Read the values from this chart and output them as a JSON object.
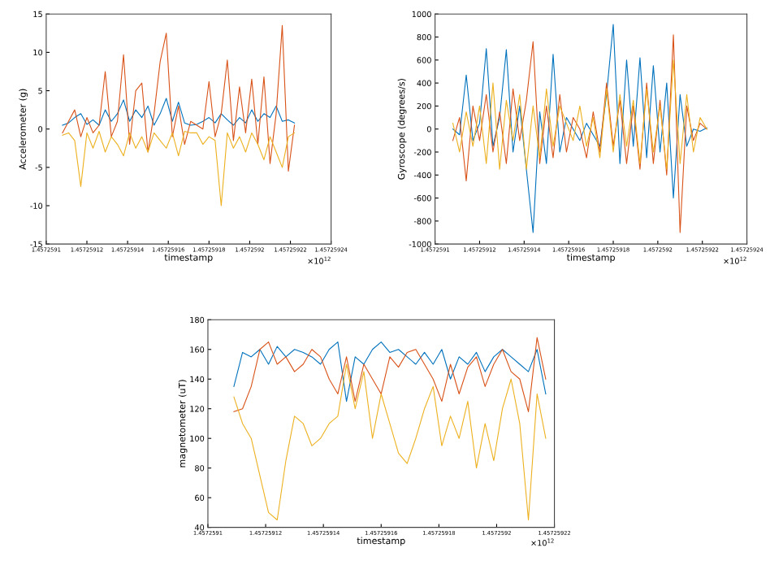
{
  "chart_data": [
    {
      "type": "line",
      "xlabel": "timestamp",
      "ylabel": "Accelerometer (g)",
      "annotations": [
        "×10$^{12}$"
      ],
      "x": [
        1.457259108,
        1.457259111,
        1.457259114,
        1.457259117,
        1.45725912,
        1.457259123,
        1.457259126,
        1.457259129,
        1.457259132,
        1.457259135,
        1.457259138,
        1.457259141,
        1.457259144,
        1.457259147,
        1.45725915,
        1.457259153,
        1.457259156,
        1.457259159,
        1.457259162,
        1.457259165,
        1.457259168,
        1.457259171,
        1.457259174,
        1.457259177,
        1.45725918,
        1.457259183,
        1.457259186,
        1.457259189,
        1.457259192,
        1.457259195,
        1.457259198,
        1.457259201,
        1.457259204,
        1.457259207,
        1.45725921,
        1.457259213,
        1.457259216,
        1.457259219,
        1.457259222
      ],
      "series": [
        {
          "color": "#0072bd",
          "values": [
            0.5,
            0.8,
            1.5,
            2.0,
            0.6,
            1.2,
            0.5,
            2.5,
            1.0,
            2.0,
            3.8,
            1.0,
            2.5,
            1.5,
            3.0,
            0.5,
            2.0,
            4.0,
            1.0,
            3.5,
            0.8,
            0.5,
            0.6,
            1.0,
            1.5,
            0.8,
            2.0,
            1.2,
            0.5,
            1.5,
            0.8,
            2.5,
            1.0,
            2.0,
            1.5,
            3.0,
            1.0,
            1.2,
            0.8
          ]
        },
        {
          "color": "#d95319",
          "values": [
            -0.5,
            1.0,
            2.5,
            -1.0,
            1.5,
            -0.5,
            0.5,
            7.5,
            -1.0,
            1.0,
            9.7,
            -2.0,
            5.0,
            6.0,
            -3.0,
            2.0,
            8.8,
            12.5,
            -1.0,
            3.0,
            -2.0,
            1.0,
            0.5,
            0.0,
            6.2,
            -1.0,
            2.0,
            9.0,
            -1.5,
            5.5,
            -0.5,
            6.5,
            -2.0,
            6.8,
            -4.5,
            2.0,
            13.5,
            -5.5,
            0.5
          ]
        },
        {
          "color": "#edb120",
          "values": [
            -0.8,
            -0.5,
            -1.5,
            -7.5,
            -0.5,
            -2.5,
            -0.3,
            -3.0,
            -1.0,
            -2.0,
            -3.5,
            -0.5,
            -2.5,
            -1.0,
            -3.0,
            -0.5,
            -1.5,
            -2.5,
            -0.5,
            -3.5,
            -0.3,
            -0.5,
            -0.5,
            -2.0,
            -1.0,
            -1.5,
            -10.0,
            -0.5,
            -2.5,
            -1.0,
            -3.0,
            -0.5,
            -2.0,
            -4.0,
            -1.0,
            -3.0,
            -5.0,
            -1.0,
            -0.5
          ]
        }
      ],
      "xlim": [
        1.4572591,
        1.45725924
      ],
      "xticks": [
        1.4572591,
        1.45725912,
        1.45725914,
        1.45725916,
        1.45725918,
        1.4572592,
        1.45725922,
        1.45725924
      ],
      "ylim": [
        -15,
        15
      ],
      "yticks": [
        -15,
        -10,
        -5,
        0,
        5,
        10,
        15
      ],
      "grid": false,
      "legend": false
    },
    {
      "type": "line",
      "xlabel": "timestamp",
      "ylabel": "Gyroscope (degrees/s)",
      "annotations": [
        "×10$^{12}$"
      ],
      "x": [
        1.457259108,
        1.457259111,
        1.457259114,
        1.457259117,
        1.45725912,
        1.457259123,
        1.457259126,
        1.457259129,
        1.457259132,
        1.457259135,
        1.457259138,
        1.457259141,
        1.457259144,
        1.457259147,
        1.45725915,
        1.457259153,
        1.457259156,
        1.457259159,
        1.457259162,
        1.457259165,
        1.457259168,
        1.457259171,
        1.457259174,
        1.457259177,
        1.45725918,
        1.457259183,
        1.457259186,
        1.457259189,
        1.457259192,
        1.457259195,
        1.457259198,
        1.457259201,
        1.457259204,
        1.457259207,
        1.45725921,
        1.457259213,
        1.457259216,
        1.457259219,
        1.457259222
      ],
      "series": [
        {
          "color": "#0072bd",
          "values": [
            0,
            -50,
            470,
            -100,
            50,
            700,
            -150,
            100,
            690,
            -200,
            200,
            -350,
            -900,
            150,
            -300,
            650,
            -200,
            100,
            0,
            -100,
            50,
            -50,
            -150,
            300,
            910,
            -300,
            600,
            -150,
            620,
            -250,
            550,
            -200,
            400,
            -600,
            300,
            -150,
            0,
            -20,
            10
          ]
        },
        {
          "color": "#d95319",
          "values": [
            -100,
            100,
            -450,
            200,
            -100,
            300,
            -200,
            150,
            -300,
            350,
            -100,
            250,
            760,
            -300,
            200,
            -250,
            300,
            -200,
            100,
            0,
            -250,
            150,
            -200,
            400,
            -150,
            250,
            -300,
            200,
            -350,
            400,
            -300,
            250,
            -400,
            820,
            -900,
            200,
            -100,
            50,
            0
          ]
        },
        {
          "color": "#edb120",
          "values": [
            50,
            -200,
            150,
            -150,
            200,
            -300,
            400,
            -350,
            250,
            -100,
            300,
            -350,
            200,
            -250,
            350,
            -150,
            200,
            50,
            -100,
            200,
            -150,
            100,
            -250,
            350,
            -200,
            300,
            -150,
            250,
            -300,
            350,
            -200,
            200,
            -350,
            600,
            -300,
            300,
            -200,
            100,
            0
          ]
        }
      ],
      "xlim": [
        1.4572591,
        1.45725924
      ],
      "xticks": [
        1.4572591,
        1.45725912,
        1.45725914,
        1.45725916,
        1.45725918,
        1.4572592,
        1.45725922,
        1.45725924
      ],
      "ylim": [
        -1000,
        1000
      ],
      "yticks": [
        -1000,
        -800,
        -600,
        -400,
        -200,
        0,
        200,
        400,
        600,
        800,
        1000
      ],
      "grid": false,
      "legend": false
    },
    {
      "type": "line",
      "xlabel": "timestamp",
      "ylabel": "magnetometer (uT)",
      "annotations": [
        "×10$^{12}$"
      ],
      "x": [
        1.457259109,
        1.457259112,
        1.457259115,
        1.457259118,
        1.457259121,
        1.457259124,
        1.457259127,
        1.45725913,
        1.457259133,
        1.457259136,
        1.457259139,
        1.457259142,
        1.457259145,
        1.457259148,
        1.457259151,
        1.457259154,
        1.457259157,
        1.45725916,
        1.457259163,
        1.457259166,
        1.457259169,
        1.457259172,
        1.457259175,
        1.457259178,
        1.457259181,
        1.457259184,
        1.457259187,
        1.45725919,
        1.457259193,
        1.457259196,
        1.457259199,
        1.457259202,
        1.457259205,
        1.457259208,
        1.457259211,
        1.457259214,
        1.457259217
      ],
      "series": [
        {
          "color": "#0072bd",
          "values": [
            135,
            158,
            155,
            160,
            150,
            162,
            155,
            160,
            158,
            155,
            150,
            160,
            165,
            125,
            155,
            150,
            160,
            165,
            158,
            160,
            155,
            150,
            158,
            150,
            160,
            140,
            155,
            150,
            158,
            145,
            155,
            160,
            155,
            150,
            145,
            160,
            130
          ]
        },
        {
          "color": "#d95319",
          "values": [
            118,
            120,
            135,
            160,
            165,
            150,
            155,
            145,
            150,
            160,
            155,
            140,
            130,
            155,
            125,
            150,
            140,
            130,
            155,
            148,
            158,
            160,
            150,
            140,
            125,
            150,
            130,
            148,
            155,
            135,
            150,
            160,
            145,
            140,
            118,
            168,
            140
          ]
        },
        {
          "color": "#edb120",
          "values": [
            128,
            110,
            100,
            75,
            50,
            45,
            85,
            115,
            110,
            95,
            100,
            110,
            115,
            150,
            120,
            145,
            100,
            130,
            110,
            90,
            83,
            100,
            120,
            135,
            95,
            115,
            100,
            125,
            80,
            110,
            85,
            120,
            140,
            110,
            45,
            130,
            100
          ]
        }
      ],
      "xlim": [
        1.4572591,
        1.45725922
      ],
      "xticks": [
        1.4572591,
        1.45725912,
        1.45725914,
        1.45725916,
        1.45725918,
        1.4572592,
        1.45725922
      ],
      "ylim": [
        40,
        180
      ],
      "yticks": [
        40,
        60,
        80,
        100,
        120,
        140,
        160,
        180
      ],
      "grid": false,
      "legend": false
    }
  ]
}
